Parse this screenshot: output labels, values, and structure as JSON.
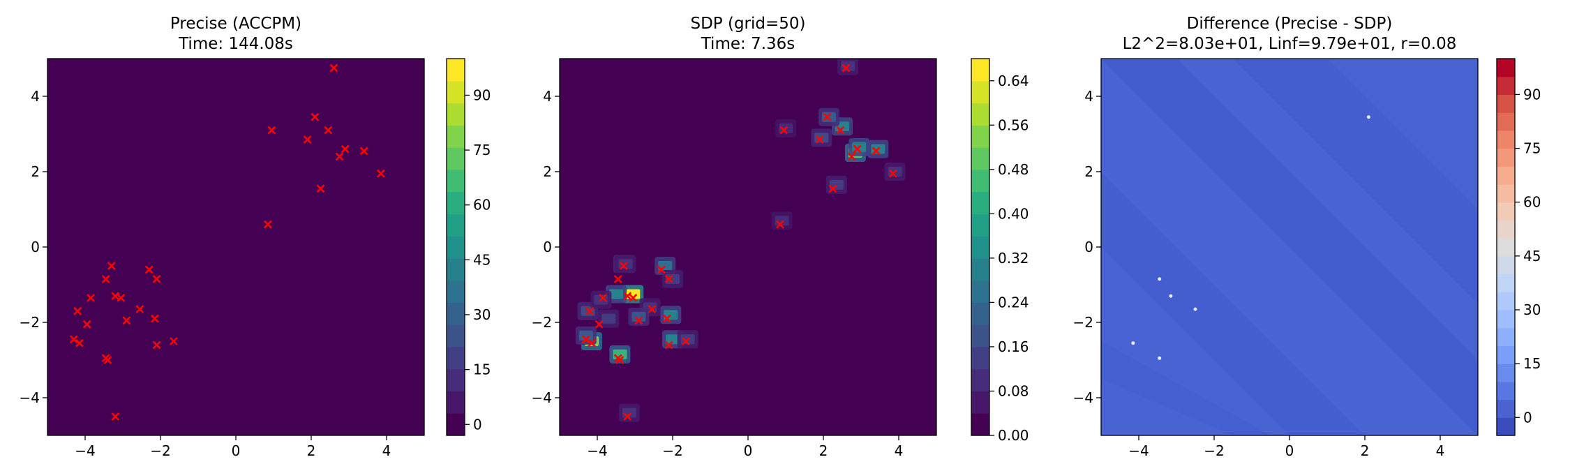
{
  "figure": {
    "panels": [
      {
        "title_line1": "Precise (ACCPM)",
        "title_line2": "Time: 144.08s"
      },
      {
        "title_line1": "SDP (grid=50)",
        "title_line2": "Time: 7.36s"
      },
      {
        "title_line1": "Difference (Precise - SDP)",
        "title_line2": "L2^2=8.03e+01, Linf=9.79e+01, r=0.08"
      }
    ]
  },
  "colors": {
    "viridis_low": "#440154",
    "marker": "#ff0000",
    "diff_background": "#4a63d3",
    "diff_band": "#4059cc"
  },
  "chart_data": [
    {
      "type": "heatmap",
      "title": "Precise (ACCPM)\nTime: 144.08s",
      "xlim": [
        -5,
        5
      ],
      "ylim": [
        -5,
        5
      ],
      "xticks": [
        -4,
        -2,
        0,
        2,
        4
      ],
      "yticks": [
        -4,
        -2,
        0,
        2,
        4
      ],
      "colormap": "viridis",
      "colorbar_range": [
        -3,
        100
      ],
      "colorbar_ticks": [
        0,
        15,
        30,
        45,
        60,
        75,
        90
      ],
      "field": "near-uniform minimum value over the whole domain",
      "markers": [
        [
          2.6,
          4.75
        ],
        [
          0.95,
          3.1
        ],
        [
          2.1,
          3.45
        ],
        [
          1.9,
          2.85
        ],
        [
          2.45,
          3.1
        ],
        [
          2.9,
          2.6
        ],
        [
          3.4,
          2.55
        ],
        [
          2.75,
          2.4
        ],
        [
          3.85,
          1.95
        ],
        [
          2.25,
          1.55
        ],
        [
          0.85,
          0.6
        ],
        [
          -3.3,
          -0.5
        ],
        [
          -2.3,
          -0.6
        ],
        [
          -3.45,
          -0.85
        ],
        [
          -2.1,
          -0.85
        ],
        [
          -3.85,
          -1.35
        ],
        [
          -3.2,
          -1.3
        ],
        [
          -3.05,
          -1.35
        ],
        [
          -4.2,
          -1.7
        ],
        [
          -2.55,
          -1.65
        ],
        [
          -2.15,
          -1.9
        ],
        [
          -2.9,
          -1.95
        ],
        [
          -3.95,
          -2.05
        ],
        [
          -4.3,
          -2.45
        ],
        [
          -4.15,
          -2.55
        ],
        [
          -1.65,
          -2.5
        ],
        [
          -2.1,
          -2.6
        ],
        [
          -3.45,
          -2.95
        ],
        [
          -3.4,
          -3.0
        ],
        [
          -3.2,
          -4.5
        ]
      ]
    },
    {
      "type": "heatmap",
      "title": "SDP (grid=50)\nTime: 7.36s",
      "xlim": [
        -5,
        5
      ],
      "ylim": [
        -5,
        5
      ],
      "xticks": [
        -4,
        -2,
        0,
        2,
        4
      ],
      "yticks": [
        -4,
        -2,
        0,
        2,
        4
      ],
      "colormap": "viridis",
      "colorbar_range": [
        0,
        0.68
      ],
      "colorbar_ticks": [
        "0.00",
        "0.08",
        "0.16",
        "0.24",
        "0.32",
        "0.40",
        "0.48",
        "0.56",
        "0.64"
      ],
      "hotspots": [
        [
          -3.05,
          -1.25,
          0.68
        ],
        [
          -4.15,
          -2.5,
          0.55
        ],
        [
          -3.4,
          -2.85,
          0.45
        ],
        [
          -3.5,
          -1.25,
          0.3
        ],
        [
          -2.2,
          -0.5,
          0.25
        ],
        [
          -2.05,
          -1.8,
          0.3
        ],
        [
          -2.0,
          -2.45,
          0.3
        ],
        [
          -3.3,
          -0.45,
          0.15
        ],
        [
          -4.25,
          -1.7,
          0.15
        ],
        [
          -3.9,
          -1.4,
          0.1
        ],
        [
          -2.6,
          -1.6,
          0.1
        ],
        [
          -3.7,
          -1.9,
          0.12
        ],
        [
          -2.9,
          -1.85,
          0.18
        ],
        [
          -2.0,
          -0.85,
          0.12
        ],
        [
          -4.3,
          -2.35,
          0.2
        ],
        [
          -1.6,
          -2.45,
          0.12
        ],
        [
          -3.25,
          -0.45,
          0.1
        ],
        [
          -3.15,
          -4.4,
          0.1
        ],
        [
          2.85,
          2.5,
          0.5
        ],
        [
          2.95,
          2.65,
          0.3
        ],
        [
          2.5,
          3.2,
          0.3
        ],
        [
          3.45,
          2.6,
          0.3
        ],
        [
          2.15,
          3.45,
          0.2
        ],
        [
          1.95,
          2.9,
          0.15
        ],
        [
          1.0,
          3.15,
          0.08
        ],
        [
          2.35,
          1.65,
          0.12
        ],
        [
          3.9,
          2.0,
          0.1
        ],
        [
          2.65,
          4.8,
          0.1
        ],
        [
          0.9,
          0.7,
          0.08
        ]
      ],
      "markers": [
        [
          2.6,
          4.75
        ],
        [
          0.95,
          3.1
        ],
        [
          2.1,
          3.45
        ],
        [
          1.9,
          2.85
        ],
        [
          2.45,
          3.1
        ],
        [
          2.9,
          2.6
        ],
        [
          3.4,
          2.55
        ],
        [
          2.75,
          2.4
        ],
        [
          3.85,
          1.95
        ],
        [
          2.25,
          1.55
        ],
        [
          0.85,
          0.6
        ],
        [
          -3.3,
          -0.5
        ],
        [
          -2.3,
          -0.6
        ],
        [
          -3.45,
          -0.85
        ],
        [
          -2.1,
          -0.85
        ],
        [
          -3.85,
          -1.35
        ],
        [
          -3.2,
          -1.3
        ],
        [
          -3.05,
          -1.35
        ],
        [
          -4.2,
          -1.7
        ],
        [
          -2.55,
          -1.65
        ],
        [
          -2.15,
          -1.9
        ],
        [
          -2.9,
          -1.95
        ],
        [
          -3.95,
          -2.05
        ],
        [
          -4.3,
          -2.45
        ],
        [
          -4.15,
          -2.55
        ],
        [
          -1.65,
          -2.5
        ],
        [
          -2.1,
          -2.6
        ],
        [
          -3.45,
          -2.95
        ],
        [
          -3.4,
          -3.0
        ],
        [
          -3.2,
          -4.5
        ]
      ]
    },
    {
      "type": "heatmap",
      "title": "Difference (Precise - SDP)\nL2^2=8.03e+01, Linf=9.79e+01, r=0.08",
      "xlim": [
        -5,
        5
      ],
      "ylim": [
        -5,
        5
      ],
      "xticks": [
        -4,
        -2,
        0,
        2,
        4
      ],
      "yticks": [
        -4,
        -2,
        0,
        2,
        4
      ],
      "colormap": "coolwarm",
      "colorbar_range": [
        -5,
        100
      ],
      "colorbar_ticks": [
        0,
        15,
        30,
        45,
        60,
        75,
        90
      ],
      "field": "near-uniform low value with diagonal band structure from top-left to bottom-right",
      "spots": [
        [
          2.1,
          3.45
        ],
        [
          -2.5,
          -1.65
        ],
        [
          -3.15,
          -1.3
        ],
        [
          -4.15,
          -2.55
        ],
        [
          -3.45,
          -2.95
        ],
        [
          -3.45,
          -0.85
        ]
      ]
    }
  ]
}
